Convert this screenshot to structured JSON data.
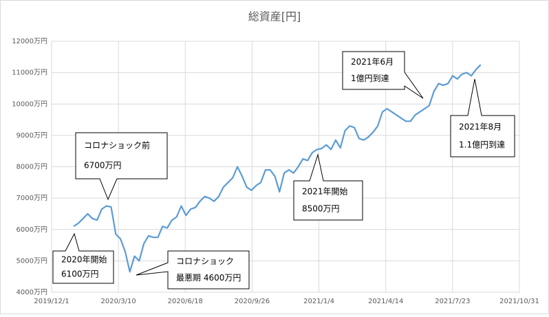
{
  "chart_data": {
    "type": "line",
    "title": "総資産[円]",
    "x": [
      "2020/1/3",
      "2020/1/10",
      "2020/1/17",
      "2020/1/24",
      "2020/1/31",
      "2020/2/7",
      "2020/2/14",
      "2020/2/21",
      "2020/2/28",
      "2020/3/6",
      "2020/3/13",
      "2020/3/20",
      "2020/3/27",
      "2020/4/3",
      "2020/4/10",
      "2020/4/17",
      "2020/4/24",
      "2020/5/1",
      "2020/5/8",
      "2020/5/15",
      "2020/5/22",
      "2020/5/29",
      "2020/6/5",
      "2020/6/12",
      "2020/6/19",
      "2020/6/26",
      "2020/7/3",
      "2020/7/10",
      "2020/7/17",
      "2020/7/24",
      "2020/7/31",
      "2020/8/7",
      "2020/8/14",
      "2020/8/21",
      "2020/8/28",
      "2020/9/4",
      "2020/9/11",
      "2020/9/18",
      "2020/9/25",
      "2020/10/2",
      "2020/10/9",
      "2020/10/16",
      "2020/10/23",
      "2020/10/30",
      "2020/11/6",
      "2020/11/13",
      "2020/11/20",
      "2020/11/27",
      "2020/12/4",
      "2020/12/11",
      "2020/12/18",
      "2020/12/25",
      "2021/1/1",
      "2021/1/8",
      "2021/1/15",
      "2021/1/22",
      "2021/1/29",
      "2021/2/5",
      "2021/2/12",
      "2021/2/19",
      "2021/2/26",
      "2021/3/5",
      "2021/3/12",
      "2021/3/19",
      "2021/3/26",
      "2021/4/2",
      "2021/4/9",
      "2021/4/16",
      "2021/4/23",
      "2021/4/30",
      "2021/5/7",
      "2021/5/14",
      "2021/5/21",
      "2021/5/28",
      "2021/6/4",
      "2021/6/11",
      "2021/6/18",
      "2021/6/25",
      "2021/7/2",
      "2021/7/9",
      "2021/7/16",
      "2021/7/23",
      "2021/7/30",
      "2021/8/6",
      "2021/8/13",
      "2021/8/20",
      "2021/8/27",
      "2021/9/3"
    ],
    "series": [
      {
        "color": "#5b9bd5",
        "values": [
          6100,
          6200,
          6350,
          6500,
          6350,
          6300,
          6650,
          6750,
          6720,
          5850,
          5700,
          5300,
          4650,
          5150,
          5000,
          5550,
          5800,
          5750,
          5750,
          6100,
          6050,
          6300,
          6400,
          6750,
          6450,
          6650,
          6700,
          6900,
          7050,
          7000,
          6900,
          7050,
          7350,
          7500,
          7650,
          8000,
          7700,
          7350,
          7250,
          7400,
          7500,
          7900,
          7900,
          7700,
          7200,
          7800,
          7900,
          7800,
          8000,
          8250,
          8200,
          8450,
          8550,
          8580,
          8700,
          8550,
          8850,
          8600,
          9150,
          9300,
          9250,
          8900,
          8850,
          8950,
          9100,
          9300,
          9750,
          9850,
          9750,
          9650,
          9550,
          9450,
          9450,
          9650,
          9750,
          9850,
          9950,
          10400,
          10650,
          10600,
          10650,
          10900,
          10800,
          10950,
          11000,
          10900,
          11100,
          11250
        ]
      }
    ],
    "xlim": [
      "2019/12/1",
      "2021/10/31"
    ],
    "xticks": [
      "2019/12/1",
      "2020/3/10",
      "2020/6/18",
      "2020/9/26",
      "2021/1/4",
      "2021/4/14",
      "2021/7/23",
      "2021/10/31"
    ],
    "ylim": [
      4000,
      12000
    ],
    "yticks": [
      {
        "value": 4000,
        "label": "4000万円"
      },
      {
        "value": 5000,
        "label": "5000万円"
      },
      {
        "value": 6000,
        "label": "6000万円"
      },
      {
        "value": 7000,
        "label": "7000万円"
      },
      {
        "value": 8000,
        "label": "8000万円"
      },
      {
        "value": 9000,
        "label": "9000万円"
      },
      {
        "value": 10000,
        "label": "10000万円"
      },
      {
        "value": 11000,
        "label": "11000万円"
      },
      {
        "value": 12000,
        "label": "12000万円"
      }
    ],
    "grid": true,
    "annotations": [
      {
        "lines": [
          "2020年開始",
          "6100万円"
        ]
      },
      {
        "lines": [
          "コロナショック前",
          "6700万円"
        ]
      },
      {
        "lines": [
          "コロナショック",
          "最悪期 4600万円"
        ]
      },
      {
        "lines": [
          "2021年開始",
          "8500万円"
        ]
      },
      {
        "lines": [
          "2021年6月",
          "1億円到達"
        ]
      },
      {
        "lines": [
          "2021年8月",
          "1.1億円到達"
        ]
      }
    ]
  }
}
